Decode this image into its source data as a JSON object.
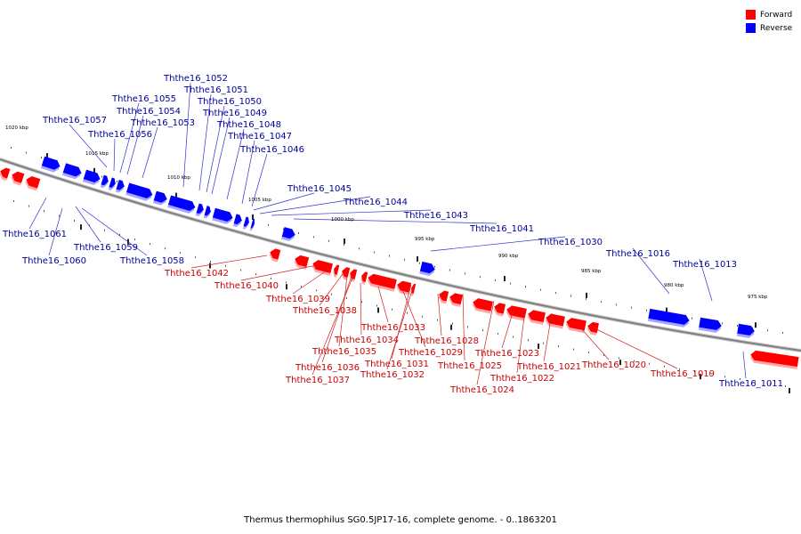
{
  "legend": [
    {
      "label": "Forward",
      "color": "#ff0000"
    },
    {
      "label": "Reverse",
      "color": "#0000ff"
    }
  ],
  "caption": "Thermus thermophilus SG0.5JP17-16, complete genome. - 0..1863201",
  "colors": {
    "forward": "#ff0000",
    "reverse": "#0000ff",
    "backbone": "#808080",
    "forward_label": "#cc0000",
    "reverse_label": "#000099"
  },
  "coordinate_labels": [
    "1020 kbp",
    "1015 kbp",
    "1010 kbp",
    "1005 kbp",
    "1000 kbp",
    "995 kbp",
    "990 kbp",
    "985 kbp",
    "980 kbp",
    "975 kbp"
  ],
  "genes": [
    {
      "label": "Ththe16_1061",
      "strand": "reverse"
    },
    {
      "label": "Ththe16_1060",
      "strand": "reverse"
    },
    {
      "label": "Ththe16_1059",
      "strand": "reverse"
    },
    {
      "label": "Ththe16_1058",
      "strand": "reverse"
    },
    {
      "label": "Ththe16_1057",
      "strand": "reverse"
    },
    {
      "label": "Ththe16_1056",
      "strand": "reverse"
    },
    {
      "label": "Ththe16_1055",
      "strand": "reverse"
    },
    {
      "label": "Ththe16_1054",
      "strand": "reverse"
    },
    {
      "label": "Ththe16_1053",
      "strand": "reverse"
    },
    {
      "label": "Ththe16_1052",
      "strand": "reverse"
    },
    {
      "label": "Ththe16_1051",
      "strand": "reverse"
    },
    {
      "label": "Ththe16_1050",
      "strand": "reverse"
    },
    {
      "label": "Ththe16_1049",
      "strand": "reverse"
    },
    {
      "label": "Ththe16_1048",
      "strand": "reverse"
    },
    {
      "label": "Ththe16_1047",
      "strand": "reverse"
    },
    {
      "label": "Ththe16_1046",
      "strand": "reverse"
    },
    {
      "label": "Ththe16_1045",
      "strand": "reverse"
    },
    {
      "label": "Ththe16_1044",
      "strand": "reverse"
    },
    {
      "label": "Ththe16_1043",
      "strand": "reverse"
    },
    {
      "label": "Ththe16_1041",
      "strand": "reverse"
    },
    {
      "label": "Ththe16_1030",
      "strand": "reverse"
    },
    {
      "label": "Ththe16_1016",
      "strand": "reverse"
    },
    {
      "label": "Ththe16_1013",
      "strand": "reverse"
    },
    {
      "label": "Ththe16_1011",
      "strand": "reverse"
    },
    {
      "label": "Ththe16_1042",
      "strand": "forward"
    },
    {
      "label": "Ththe16_1040",
      "strand": "forward"
    },
    {
      "label": "Ththe16_1039",
      "strand": "forward"
    },
    {
      "label": "Ththe16_1038",
      "strand": "forward"
    },
    {
      "label": "Ththe16_1037",
      "strand": "forward"
    },
    {
      "label": "Ththe16_1036",
      "strand": "forward"
    },
    {
      "label": "Ththe16_1035",
      "strand": "forward"
    },
    {
      "label": "Ththe16_1034",
      "strand": "forward"
    },
    {
      "label": "Ththe16_1033",
      "strand": "forward"
    },
    {
      "label": "Ththe16_1032",
      "strand": "forward"
    },
    {
      "label": "Ththe16_1031",
      "strand": "forward"
    },
    {
      "label": "Ththe16_1029",
      "strand": "forward"
    },
    {
      "label": "Ththe16_1028",
      "strand": "forward"
    },
    {
      "label": "Ththe16_1025",
      "strand": "forward"
    },
    {
      "label": "Ththe16_1024",
      "strand": "forward"
    },
    {
      "label": "Ththe16_1023",
      "strand": "forward"
    },
    {
      "label": "Ththe16_1022",
      "strand": "forward"
    },
    {
      "label": "Ththe16_1021",
      "strand": "forward"
    },
    {
      "label": "Ththe16_1020",
      "strand": "forward"
    },
    {
      "label": "Ththe16_1019",
      "strand": "forward"
    }
  ]
}
